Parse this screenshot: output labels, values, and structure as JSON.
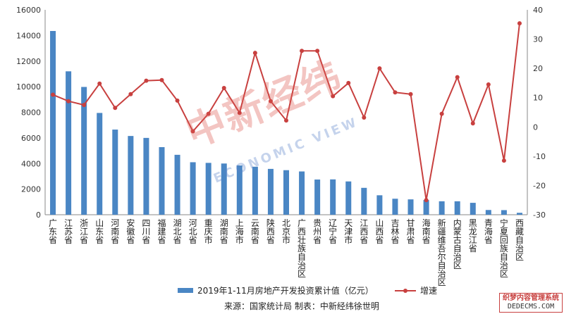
{
  "chart_data": {
    "type": "bar",
    "categories": [
      "广东省",
      "江苏省",
      "浙江省",
      "山东省",
      "河南省",
      "安徽省",
      "四川省",
      "福建省",
      "湖北省",
      "河北省",
      "重庆市",
      "湖南省",
      "上海市",
      "云南省",
      "陕西省",
      "北京市",
      "广西壮族自治区",
      "贵州省",
      "辽宁省",
      "天津市",
      "江西省",
      "山西省",
      "吉林省",
      "甘肃省",
      "海南省",
      "新疆维吾尔自治区",
      "内蒙古自治区",
      "黑龙江省",
      "青海省",
      "宁夏回族自治区",
      "西藏自治区"
    ],
    "series": [
      {
        "name": "2019年1-11月房地产开发投资累计值（亿元）",
        "type": "bar",
        "axis": "left",
        "color": "#4a86c4",
        "values": [
          14350,
          11200,
          9980,
          7950,
          6650,
          6150,
          6000,
          5280,
          4680,
          4100,
          4050,
          4000,
          3850,
          3750,
          3580,
          3480,
          3380,
          2750,
          2760,
          2600,
          2100,
          1520,
          1250,
          1200,
          1150,
          1050,
          1050,
          930,
          370,
          360,
          150
        ]
      },
      {
        "name": "增速",
        "type": "line",
        "axis": "right",
        "color": "#c8403f",
        "values": [
          11,
          8.8,
          7.5,
          14.8,
          6.5,
          11.2,
          15.8,
          16,
          9,
          -1.5,
          4.5,
          13.3,
          4.8,
          25.3,
          8.8,
          2.2,
          26,
          26,
          10.5,
          15,
          3.2,
          20,
          11.8,
          11.2,
          -25,
          4.5,
          17,
          1.2,
          14.5,
          -11.5,
          35.4
        ]
      }
    ],
    "y_left": {
      "min": 0,
      "max": 16000,
      "ticks": [
        "0",
        "2000",
        "4000",
        "6000",
        "8000",
        "10000",
        "12000",
        "14000",
        "16000"
      ]
    },
    "y_right": {
      "min": -30,
      "max": 40,
      "ticks": [
        "-30",
        "-20",
        "-10",
        "0",
        "10",
        "20",
        "30",
        "40"
      ]
    },
    "grid": false,
    "legend": "bottom"
  },
  "legend": {
    "bar_label": "2019年1-11月房地产开发投资累计值（亿元）",
    "line_label": "增速"
  },
  "source_text": "来源：国家统计局   制表：中新经纬徐世明",
  "watermark": {
    "cn": "中新经纬",
    "en": "ECONOMIC VIEW"
  },
  "corner_logo": {
    "cn": "织梦内容管理系统",
    "en": "DEDECMS.COM"
  }
}
